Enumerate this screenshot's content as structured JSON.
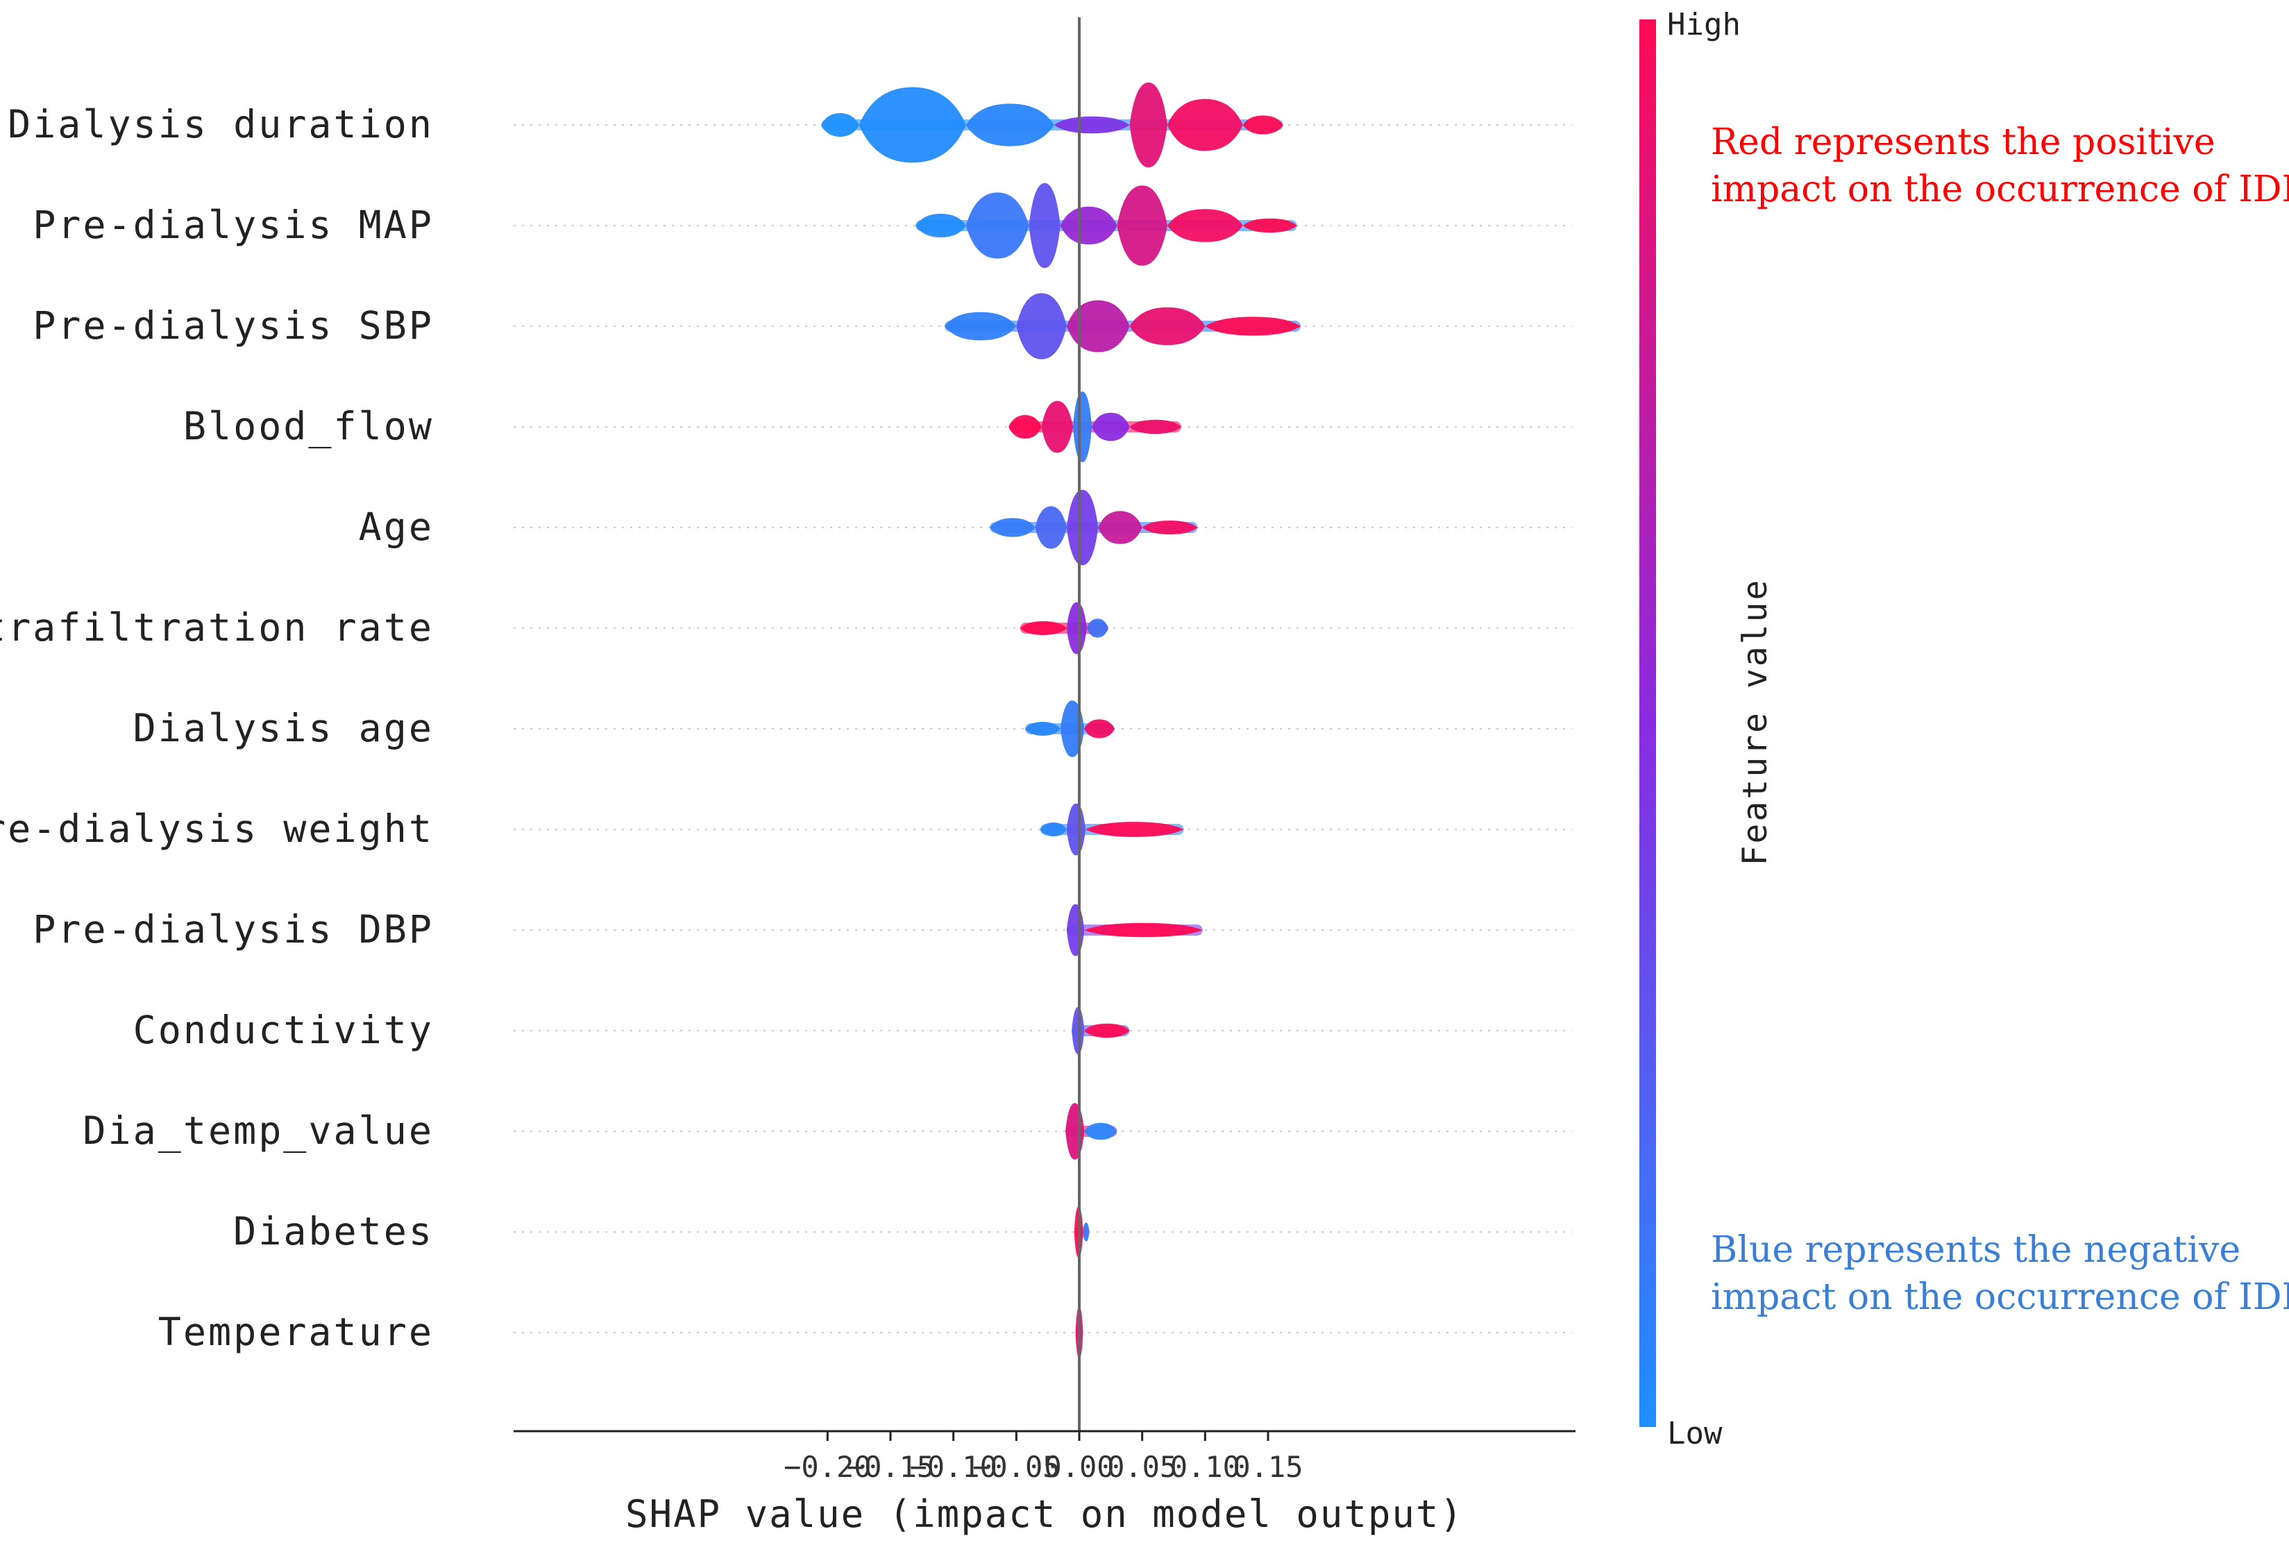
{
  "chart_data": {
    "type": "scatter",
    "subtype": "shap-beeswarm",
    "xlabel": "SHAP value (impact on model output)",
    "xlim": [
      -0.22,
      0.2
    ],
    "xticks": [
      -0.2,
      -0.15,
      -0.1,
      -0.05,
      0.0,
      0.05,
      0.1,
      0.15
    ],
    "xtick_labels": [
      "−0.20",
      "−0.15",
      "−0.10",
      "−0.05",
      "0.00",
      "0.05",
      "0.10",
      "0.15"
    ],
    "colorbar": {
      "title": "Feature value",
      "high_label": "High",
      "low_label": "Low",
      "high_color": "#ff0a54",
      "mid_color": "#8a2be2",
      "low_color": "#1e90ff"
    },
    "annotations": {
      "positive_line1": "Red represents the positive",
      "positive_line2": "impact on the occurrence of IDH",
      "negative_line1": "Blue represents the negative",
      "negative_line2": "impact on the occurrence of IDH"
    },
    "features": [
      {
        "name": "Dialysis duration",
        "min": -0.205,
        "max": 0.162,
        "segments": [
          {
            "from": -0.205,
            "to": -0.175,
            "w": 0.25,
            "c": 0.0
          },
          {
            "from": -0.175,
            "to": -0.09,
            "w": 0.8,
            "c": 0.02
          },
          {
            "from": -0.09,
            "to": -0.02,
            "w": 0.45,
            "c": 0.05
          },
          {
            "from": -0.02,
            "to": 0.04,
            "w": 0.18,
            "c": 0.45
          },
          {
            "from": 0.04,
            "to": 0.07,
            "w": 0.9,
            "c": 0.88
          },
          {
            "from": 0.07,
            "to": 0.13,
            "w": 0.55,
            "c": 0.95
          },
          {
            "from": 0.13,
            "to": 0.162,
            "w": 0.2,
            "c": 1.0
          }
        ]
      },
      {
        "name": "Pre-dialysis MAP",
        "min": -0.13,
        "max": 0.173,
        "segments": [
          {
            "from": -0.13,
            "to": -0.09,
            "w": 0.25,
            "c": 0.02
          },
          {
            "from": -0.09,
            "to": -0.04,
            "w": 0.7,
            "c": 0.12
          },
          {
            "from": -0.04,
            "to": -0.015,
            "w": 0.9,
            "c": 0.3
          },
          {
            "from": -0.015,
            "to": 0.03,
            "w": 0.4,
            "c": 0.55
          },
          {
            "from": 0.03,
            "to": 0.07,
            "w": 0.85,
            "c": 0.82
          },
          {
            "from": 0.07,
            "to": 0.13,
            "w": 0.35,
            "c": 0.95
          },
          {
            "from": 0.13,
            "to": 0.173,
            "w": 0.15,
            "c": 1.0
          }
        ]
      },
      {
        "name": "Pre-dialysis SBP",
        "min": -0.107,
        "max": 0.176,
        "segments": [
          {
            "from": -0.107,
            "to": -0.05,
            "w": 0.3,
            "c": 0.08
          },
          {
            "from": -0.05,
            "to": -0.01,
            "w": 0.7,
            "c": 0.3
          },
          {
            "from": -0.01,
            "to": 0.04,
            "w": 0.55,
            "c": 0.7
          },
          {
            "from": 0.04,
            "to": 0.1,
            "w": 0.4,
            "c": 0.9
          },
          {
            "from": 0.1,
            "to": 0.176,
            "w": 0.2,
            "c": 1.0
          }
        ]
      },
      {
        "name": "Blood_flow",
        "min": -0.056,
        "max": 0.081,
        "segments": [
          {
            "from": -0.056,
            "to": -0.03,
            "w": 0.25,
            "c": 1.0
          },
          {
            "from": -0.03,
            "to": -0.005,
            "w": 0.55,
            "c": 0.9
          },
          {
            "from": -0.005,
            "to": 0.01,
            "w": 0.75,
            "c": 0.1
          },
          {
            "from": 0.01,
            "to": 0.04,
            "w": 0.3,
            "c": 0.5
          },
          {
            "from": 0.04,
            "to": 0.081,
            "w": 0.15,
            "c": 0.92
          }
        ]
      },
      {
        "name": "Age",
        "min": -0.071,
        "max": 0.094,
        "segments": [
          {
            "from": -0.071,
            "to": -0.035,
            "w": 0.2,
            "c": 0.1
          },
          {
            "from": -0.035,
            "to": -0.01,
            "w": 0.45,
            "c": 0.2
          },
          {
            "from": -0.01,
            "to": 0.015,
            "w": 0.8,
            "c": 0.4
          },
          {
            "from": 0.015,
            "to": 0.05,
            "w": 0.35,
            "c": 0.75
          },
          {
            "from": 0.05,
            "to": 0.094,
            "w": 0.14,
            "c": 0.95
          }
        ]
      },
      {
        "name": "Ultrafiltration rate",
        "min": -0.047,
        "max": 0.023,
        "segments": [
          {
            "from": -0.047,
            "to": -0.01,
            "w": 0.14,
            "c": 1.0
          },
          {
            "from": -0.01,
            "to": 0.006,
            "w": 0.55,
            "c": 0.5
          },
          {
            "from": 0.006,
            "to": 0.023,
            "w": 0.2,
            "c": 0.15
          }
        ]
      },
      {
        "name": "Dialysis age",
        "min": -0.043,
        "max": 0.028,
        "segments": [
          {
            "from": -0.043,
            "to": -0.015,
            "w": 0.14,
            "c": 0.05
          },
          {
            "from": -0.015,
            "to": 0.004,
            "w": 0.6,
            "c": 0.1
          },
          {
            "from": 0.004,
            "to": 0.028,
            "w": 0.2,
            "c": 0.95
          }
        ]
      },
      {
        "name": "Pre-dialysis weight",
        "min": -0.031,
        "max": 0.083,
        "segments": [
          {
            "from": -0.031,
            "to": -0.01,
            "w": 0.14,
            "c": 0.05
          },
          {
            "from": -0.01,
            "to": 0.005,
            "w": 0.55,
            "c": 0.3
          },
          {
            "from": 0.005,
            "to": 0.083,
            "w": 0.16,
            "c": 1.0
          }
        ]
      },
      {
        "name": "Pre-dialysis DBP",
        "min": -0.01,
        "max": 0.098,
        "segments": [
          {
            "from": -0.01,
            "to": 0.004,
            "w": 0.55,
            "c": 0.4
          },
          {
            "from": 0.004,
            "to": 0.098,
            "w": 0.15,
            "c": 1.0
          }
        ]
      },
      {
        "name": "Conductivity",
        "min": -0.006,
        "max": 0.04,
        "segments": [
          {
            "from": -0.006,
            "to": 0.004,
            "w": 0.5,
            "c": 0.3
          },
          {
            "from": 0.004,
            "to": 0.04,
            "w": 0.15,
            "c": 1.0
          }
        ]
      },
      {
        "name": "Dia_temp_value",
        "min": -0.011,
        "max": 0.03,
        "segments": [
          {
            "from": -0.011,
            "to": 0.004,
            "w": 0.6,
            "c": 0.85
          },
          {
            "from": 0.004,
            "to": 0.03,
            "w": 0.18,
            "c": 0.05
          }
        ]
      },
      {
        "name": "Diabetes",
        "min": -0.004,
        "max": 0.008,
        "segments": [
          {
            "from": -0.004,
            "to": 0.003,
            "w": 0.55,
            "c": 1.0
          },
          {
            "from": 0.003,
            "to": 0.008,
            "w": 0.2,
            "c": 0.1
          }
        ]
      },
      {
        "name": "Temperature",
        "min": -0.003,
        "max": 0.003,
        "segments": [
          {
            "from": -0.003,
            "to": 0.003,
            "w": 0.55,
            "c": 0.9
          }
        ]
      }
    ]
  }
}
